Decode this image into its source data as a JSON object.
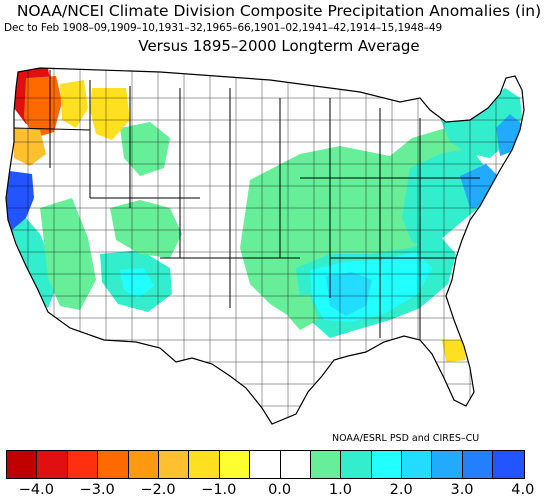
{
  "header": {
    "title": "NOAA/NCEI Climate Division Composite Precipitation Anomalies (in)",
    "subtitle": "Dec to Feb   1908–09,1909–10,1931–32,1965–66,1901–02,1941–42,1914–15,1948–49",
    "versus": "Versus 1895–2000 Longterm Average"
  },
  "credit": "NOAA/ESRL PSD and CIRES–CU",
  "legend": {
    "colors": [
      "#c00000",
      "#e01010",
      "#ff3010",
      "#ff6a00",
      "#ff9a10",
      "#ffc030",
      "#ffe020",
      "#ffff30",
      "#ffffff",
      "#ffffff",
      "#66ee99",
      "#33eecc",
      "#22ffff",
      "#22ddff",
      "#22aaff",
      "#2280ff",
      "#2255ff"
    ],
    "ticks": [
      "−4.0",
      "−3.0",
      "−2.0",
      "−1.0",
      "0.0",
      "1.0",
      "2.0",
      "3.0",
      "4.0"
    ]
  },
  "map": {
    "region": "Contiguous United States",
    "colors": {
      "land": "#ffffff",
      "border": "#000000",
      "wa_dry_strong": "#e01010",
      "wa_dry": "#ff6a00",
      "dry_mild": "#ffc030",
      "dry_weak": "#ffe020",
      "wet_1": "#66ee99",
      "wet_1_5": "#33eecc",
      "wet_2": "#22ffff",
      "wet_2_5": "#22ddff",
      "wet_3": "#22aaff",
      "wet_4": "#2255ff"
    }
  }
}
